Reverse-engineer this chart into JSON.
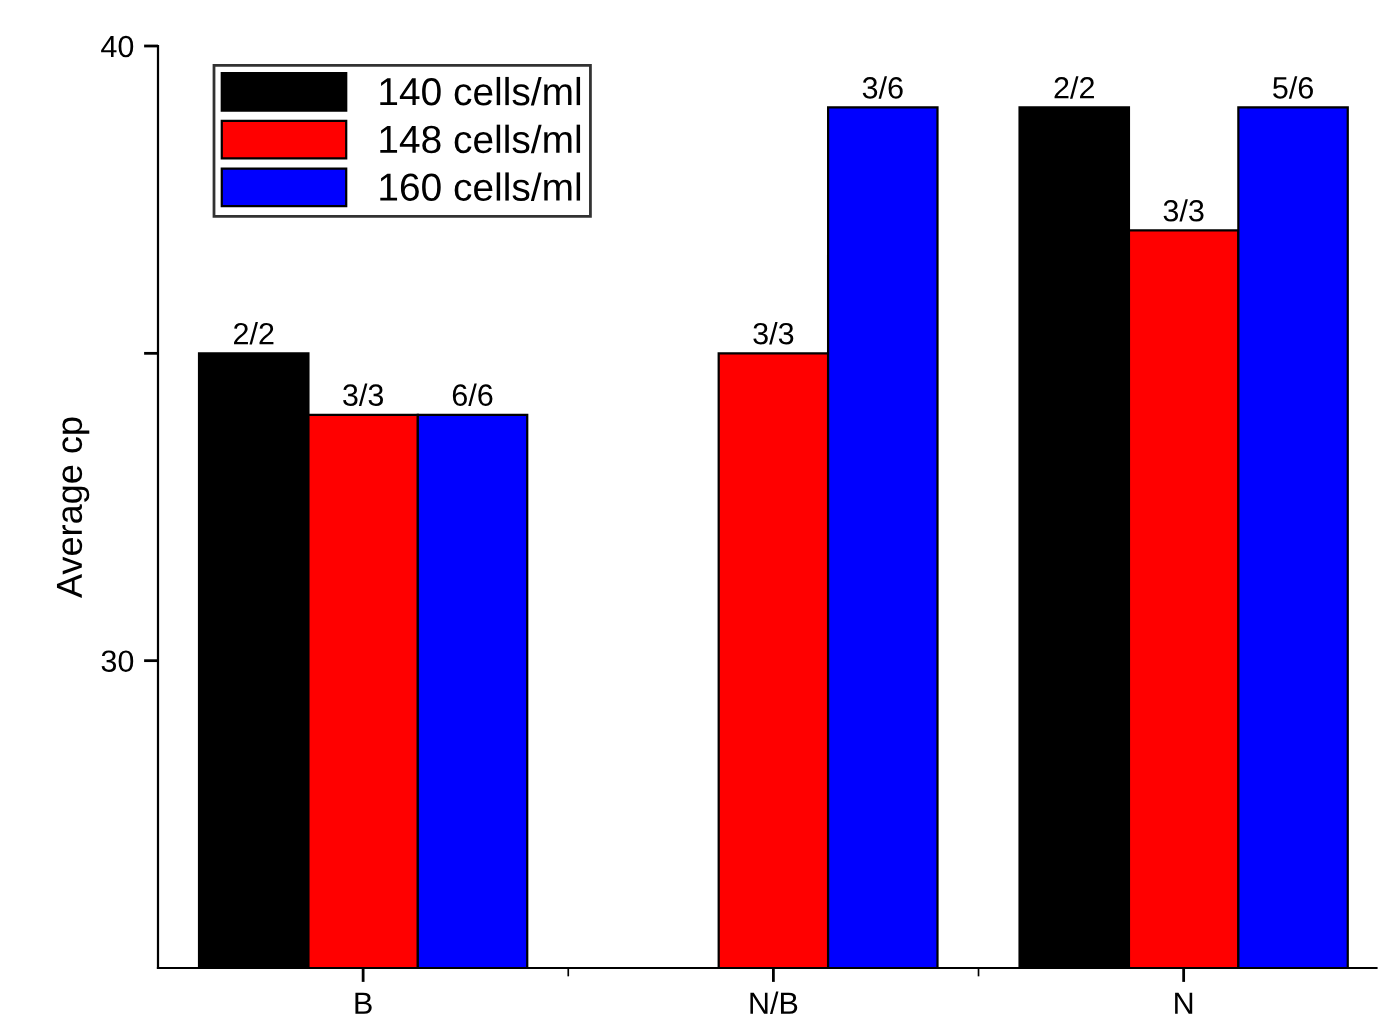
{
  "chart_data": {
    "type": "bar",
    "ylabel": "Average cp",
    "categories": [
      "B",
      "N/B",
      "N"
    ],
    "series": [
      {
        "name": "140 cells/ml",
        "color": "#000000",
        "values": [
          35,
          null,
          39
        ]
      },
      {
        "name": "148 cells/ml",
        "color": "#ff0000",
        "values": [
          34,
          35,
          37
        ]
      },
      {
        "name": "160 cells/ml",
        "color": "#0000ff",
        "values": [
          34,
          39,
          39
        ]
      }
    ],
    "annotations": [
      "2/2",
      "3/3",
      "6/6",
      "3/3",
      "3/6",
      "2/2",
      "3/3",
      "5/6"
    ],
    "ylim": [
      25,
      40
    ],
    "yticks": [
      30,
      {
        "value": 35,
        "label": null
      },
      40
    ],
    "legend": "top left",
    "grid": false
  }
}
